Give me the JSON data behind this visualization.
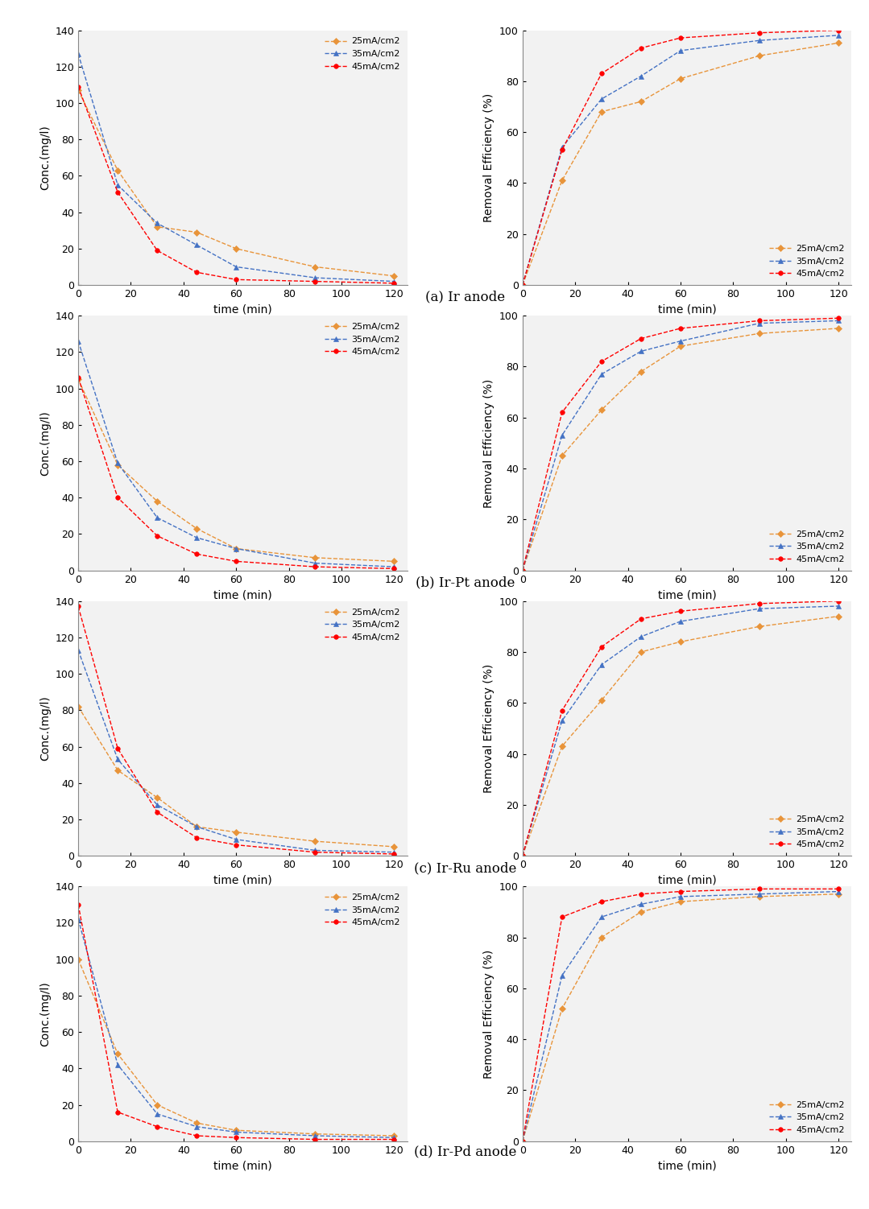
{
  "time": [
    0,
    15,
    30,
    45,
    60,
    90,
    120
  ],
  "panels": [
    {
      "label": "(a) Ir anode",
      "conc": {
        "25mA/cm2": [
          107,
          63,
          32,
          29,
          20,
          10,
          5
        ],
        "35mA/cm2": [
          127,
          55,
          34,
          22,
          10,
          4,
          2
        ],
        "45mA/cm2": [
          109,
          51,
          19,
          7,
          3,
          2,
          1
        ]
      },
      "eff": {
        "25mA/cm2": [
          0,
          41,
          68,
          72,
          81,
          90,
          95
        ],
        "35mA/cm2": [
          0,
          54,
          73,
          82,
          92,
          96,
          98
        ],
        "45mA/cm2": [
          0,
          53,
          83,
          93,
          97,
          99,
          100
        ]
      }
    },
    {
      "label": "(b) Ir-Pt anode",
      "conc": {
        "25mA/cm2": [
          105,
          58,
          38,
          23,
          12,
          7,
          5
        ],
        "35mA/cm2": [
          126,
          59,
          29,
          18,
          12,
          4,
          2
        ],
        "45mA/cm2": [
          106,
          40,
          19,
          9,
          5,
          2,
          1
        ]
      },
      "eff": {
        "25mA/cm2": [
          0,
          45,
          63,
          78,
          88,
          93,
          95
        ],
        "35mA/cm2": [
          0,
          53,
          77,
          86,
          90,
          97,
          98
        ],
        "45mA/cm2": [
          0,
          62,
          82,
          91,
          95,
          98,
          99
        ]
      }
    },
    {
      "label": "(c) Ir-Ru anode",
      "conc": {
        "25mA/cm2": [
          82,
          47,
          32,
          16,
          13,
          8,
          5
        ],
        "35mA/cm2": [
          113,
          53,
          28,
          16,
          9,
          3,
          2
        ],
        "45mA/cm2": [
          137,
          59,
          24,
          10,
          6,
          2,
          1
        ]
      },
      "eff": {
        "25mA/cm2": [
          0,
          43,
          61,
          80,
          84,
          90,
          94
        ],
        "35mA/cm2": [
          0,
          53,
          75,
          86,
          92,
          97,
          98
        ],
        "45mA/cm2": [
          0,
          57,
          82,
          93,
          96,
          99,
          100
        ]
      }
    },
    {
      "label": "(d) Ir-Pd anode",
      "conc": {
        "25mA/cm2": [
          100,
          48,
          20,
          10,
          6,
          4,
          3
        ],
        "35mA/cm2": [
          122,
          42,
          15,
          8,
          5,
          3,
          2
        ],
        "45mA/cm2": [
          130,
          16,
          8,
          3,
          2,
          1,
          1
        ]
      },
      "eff": {
        "25mA/cm2": [
          0,
          52,
          80,
          90,
          94,
          96,
          97
        ],
        "35mA/cm2": [
          0,
          65,
          88,
          93,
          96,
          97,
          98
        ],
        "45mA/cm2": [
          0,
          88,
          94,
          97,
          98,
          99,
          99
        ]
      }
    }
  ],
  "colors": {
    "25mA/cm2": "#E8943A",
    "35mA/cm2": "#4472C4",
    "45mA/cm2": "#FF0000"
  },
  "markers": {
    "25mA/cm2": "D",
    "35mA/cm2": "^",
    "45mA/cm2": "o"
  },
  "markersize": 4,
  "linewidth": 1.0,
  "legend_labels": [
    "25mA/cm2",
    "35mA/cm2",
    "45mA/cm2"
  ],
  "ylabel_conc": "Conc.(mg/l)",
  "ylabel_eff": "Removal Efficiency (%)",
  "xlabel": "time (min)",
  "ylim_conc": [
    0,
    140
  ],
  "ylim_eff": [
    0,
    100
  ],
  "xticks": [
    0,
    20,
    40,
    60,
    80,
    100,
    120
  ],
  "yticks_conc": [
    0,
    20,
    40,
    60,
    80,
    100,
    120,
    140
  ],
  "yticks_eff": [
    0,
    20,
    40,
    60,
    80,
    100
  ],
  "panel_label_fontsize": 12,
  "tick_fontsize": 9,
  "legend_fontsize": 8,
  "axis_label_fontsize": 10,
  "plot_bg_color": "#F2F2F2"
}
